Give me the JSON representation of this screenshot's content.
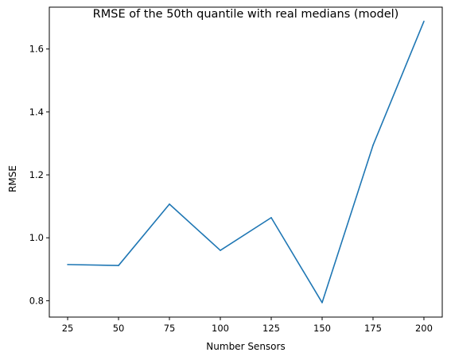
{
  "chart_data": {
    "type": "line",
    "title": "RMSE of the 50th quantile with real medians (model)",
    "xlabel": "Number Sensors",
    "ylabel": "RMSE",
    "xlim": [
      16,
      209
    ],
    "ylim": [
      0.748,
      1.733
    ],
    "xticks": [
      25,
      50,
      75,
      100,
      125,
      150,
      175,
      200
    ],
    "yticks": [
      0.8,
      1.0,
      1.2,
      1.4,
      1.6
    ],
    "ytick_labels": [
      "0.8",
      "1.0",
      "1.2",
      "1.4",
      "1.6"
    ],
    "grid": false,
    "series": [
      {
        "color": "#1f77b4",
        "x": [
          25,
          50,
          75,
          100,
          125,
          150,
          175,
          200
        ],
        "y": [
          0.915,
          0.912,
          1.107,
          0.96,
          1.064,
          0.794,
          1.294,
          1.688
        ]
      }
    ]
  }
}
